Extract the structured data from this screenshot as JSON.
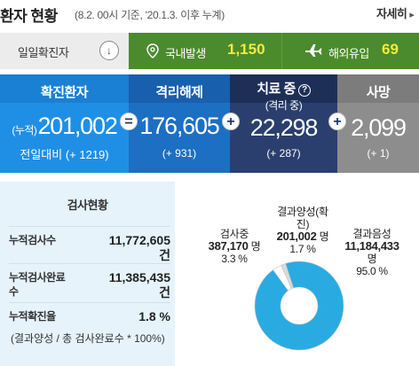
{
  "header": {
    "title": "환자 현황",
    "subtitle": "(8.2. 00시 기준, '20.1.3. 이후 누계)",
    "more_label": "자세히",
    "more_arrow": "▸"
  },
  "daily": {
    "label": "일일확진자",
    "toggle_glyph": "↓",
    "domestic": {
      "label": "국내발생",
      "value": "1,150"
    },
    "overseas": {
      "label": "해외유입",
      "value": "69"
    }
  },
  "stats": {
    "confirmed": {
      "title": "확진환자",
      "prefix": "(누적)",
      "value": "201,002",
      "sub": "전일대비 (+ 1219)"
    },
    "released": {
      "title": "격리해제",
      "value": "176,605",
      "sub": "(+ 931)"
    },
    "treating": {
      "title": "치료 중",
      "title2": "(격리 중)",
      "help_glyph": "?",
      "value": "22,298",
      "sub": "(+ 287)"
    },
    "deaths": {
      "title": "사망",
      "value": "2,099",
      "sub": "(+ 1)"
    },
    "op_equals": "=",
    "op_plus1": "+",
    "op_plus2": "+"
  },
  "tests": {
    "title": "검사현황",
    "rows": [
      {
        "label": "누적검사수",
        "value": "11,772,605",
        "unit": "건"
      },
      {
        "label": "누적검사완료",
        "label2": "수",
        "value": "11,385,435",
        "unit": "건"
      },
      {
        "label": "누적확진율",
        "value": "1.8 %"
      }
    ],
    "note": "(결과양성 / 총 검사완료수 * 100%)"
  },
  "chart_data": {
    "type": "pie",
    "categories": [
      "결과음성",
      "검사중",
      "결과양성(확진)"
    ],
    "values": [
      11184433,
      387170,
      201002
    ],
    "percents": [
      95.0,
      3.3,
      1.7
    ],
    "colors": [
      "#29abe2",
      "#ffffff",
      "#d9d9d9"
    ],
    "labels": {
      "negative": {
        "name": "결과음성",
        "value": "11,184,433",
        "unit": "명",
        "pct": "95.0 %"
      },
      "testing": {
        "name": "검사중",
        "value": "387,170",
        "unit": "명",
        "pct": "3.3 %"
      },
      "positive": {
        "name": "결과양성(확",
        "name2": "진)",
        "value": "201,002",
        "unit": "명",
        "pct": "1.7 %"
      }
    }
  }
}
